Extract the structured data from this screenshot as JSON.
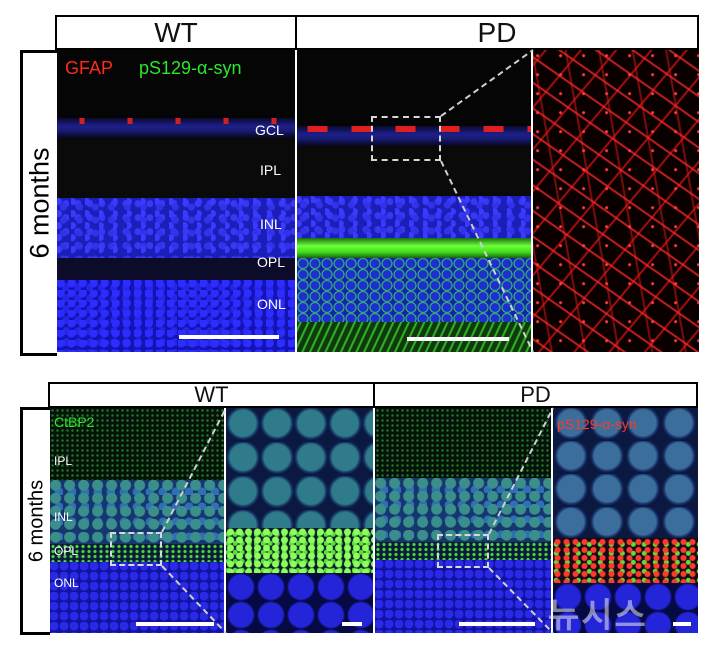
{
  "top": {
    "header_wt": "WT",
    "header_pd": "PD",
    "side_label": "6 months",
    "stain_gfap": "GFAP",
    "stain_syn": "pS129-α-syn",
    "layers": [
      "GCL",
      "IPL",
      "INL",
      "OPL",
      "ONL"
    ]
  },
  "bottom": {
    "header_wt": "WT",
    "header_pd": "PD",
    "side_label": "6 months",
    "stain_ctbp2": "CtBP2",
    "stain_syn": "pS129-α-syn",
    "layers": [
      "IPL",
      "INL",
      "OPL",
      "ONL"
    ]
  },
  "watermark": "뉴시스",
  "colors": {
    "gfap": "#ff2a1a",
    "syn": "#2ee62e",
    "ctbp2": "#2ee62e",
    "dapi": "#1a1ab8"
  }
}
